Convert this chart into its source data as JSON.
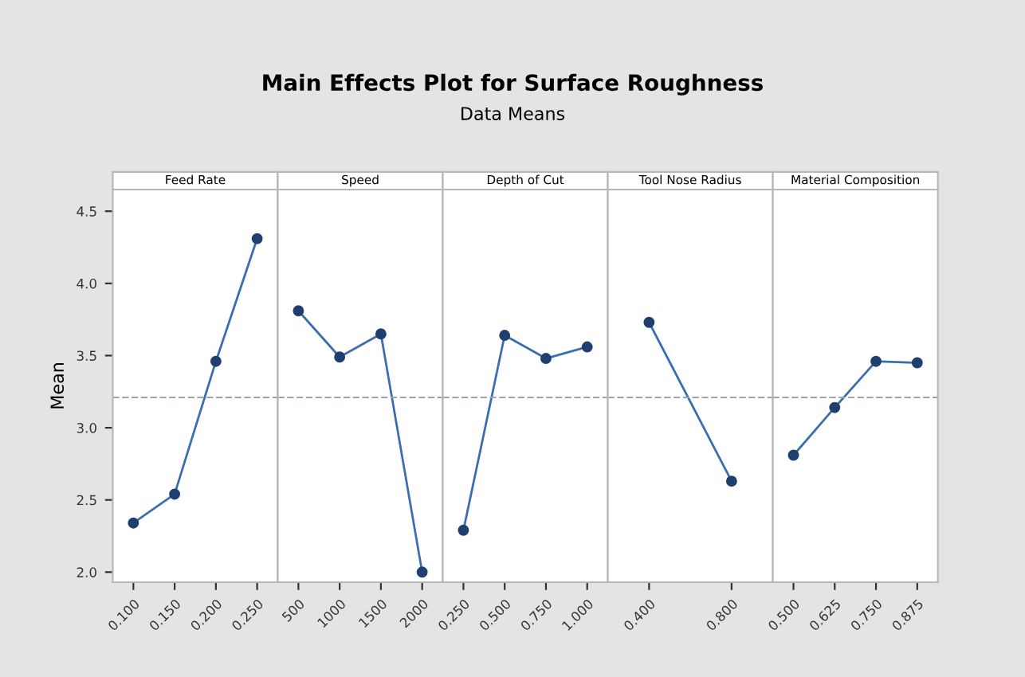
{
  "chart_data": [
    {
      "type": "line",
      "title": "Feed Rate",
      "annotations": [
        "Main Effects Plot for Surface Roughness",
        "Data Means"
      ],
      "ylabel": "Mean",
      "categories": [
        "0.100",
        "0.150",
        "0.200",
        "0.250"
      ],
      "series": [
        {
          "color": "#3b6eb0",
          "values": [
            2.34,
            2.54,
            3.46,
            4.31
          ]
        }
      ],
      "ylim": [
        1.93,
        4.65
      ],
      "yticks": [
        {
          "value": 2,
          "label": "2.0"
        },
        2.5,
        {
          "value": 3,
          "label": "3.0"
        },
        3.5,
        {
          "value": 4,
          "label": "4.0"
        },
        4.5
      ],
      "marker": "circle",
      "grid": false,
      "ref_lines": [
        {
          "axis": "y",
          "value": 3.21,
          "color": "#9aa4b0",
          "line_style": "dashed"
        }
      ]
    },
    {
      "type": "line",
      "title": "Speed",
      "categories": [
        "500",
        "1000",
        "1500",
        "2000"
      ],
      "series": [
        {
          "color": "#3b6eb0",
          "values": [
            3.81,
            3.49,
            3.65,
            2.0
          ]
        }
      ],
      "ylim": [
        1.93,
        4.65
      ],
      "yticks": [
        2.0,
        2.5,
        3.0,
        3.5,
        4.0,
        4.5
      ],
      "tick_labels": "x",
      "marker": "circle",
      "grid": false,
      "ref_lines": [
        {
          "axis": "y",
          "value": 3.21,
          "color": "#9aa4b0",
          "line_style": "dashed"
        }
      ]
    },
    {
      "type": "line",
      "title": "Depth of Cut",
      "categories": [
        "0.250",
        "0.500",
        "0.750",
        "1.000"
      ],
      "series": [
        {
          "color": "#3b6eb0",
          "values": [
            2.29,
            3.64,
            3.48,
            3.56
          ]
        }
      ],
      "ylim": [
        1.93,
        4.65
      ],
      "yticks": [
        2.0,
        2.5,
        3.0,
        3.5,
        4.0,
        4.5
      ],
      "tick_labels": "x",
      "marker": "circle",
      "grid": false,
      "ref_lines": [
        {
          "axis": "y",
          "value": 3.21,
          "color": "#9aa4b0",
          "line_style": "dashed"
        }
      ]
    },
    {
      "type": "line",
      "title": "Tool Nose Radius",
      "categories": [
        "0.400",
        "0.800"
      ],
      "series": [
        {
          "color": "#3b6eb0",
          "values": [
            3.73,
            2.63
          ]
        }
      ],
      "ylim": [
        1.93,
        4.65
      ],
      "yticks": [
        2.0,
        2.5,
        3.0,
        3.5,
        4.0,
        4.5
      ],
      "tick_labels": "x",
      "marker": "circle",
      "grid": false,
      "ref_lines": [
        {
          "axis": "y",
          "value": 3.21,
          "color": "#9aa4b0",
          "line_style": "dashed"
        }
      ]
    },
    {
      "type": "line",
      "title": "Material Composition",
      "categories": [
        "0.500",
        "0.625",
        "0.750",
        "0.875"
      ],
      "series": [
        {
          "color": "#3b6eb0",
          "values": [
            2.81,
            3.14,
            3.46,
            3.45
          ]
        }
      ],
      "ylim": [
        1.93,
        4.65
      ],
      "yticks": [
        2.0,
        2.5,
        3.0,
        3.5,
        4.0,
        4.5
      ],
      "tick_labels": "x",
      "marker": "circle",
      "grid": false,
      "ref_lines": [
        {
          "axis": "y",
          "value": 3.21,
          "color": "#9aa4b0",
          "line_style": "dashed"
        }
      ]
    }
  ]
}
